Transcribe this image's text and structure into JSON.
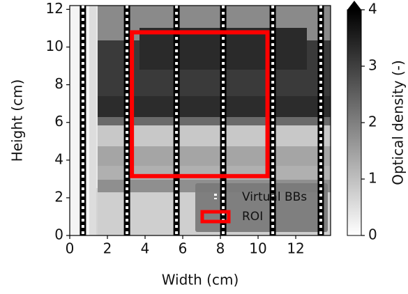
{
  "chart_data": {
    "type": "image",
    "xlabel": "Width (cm)",
    "ylabel": "Height (cm)",
    "xlim": [
      0,
      13.85
    ],
    "ylim": [
      0,
      12.2
    ],
    "xticks": [
      0,
      2,
      4,
      6,
      8,
      10,
      12
    ],
    "yticks": [
      0,
      2,
      4,
      6,
      8,
      10,
      12
    ],
    "colorbar": {
      "label": "Optical density (-)",
      "lim": [
        0,
        4
      ],
      "ticks": [
        0,
        1,
        2,
        3,
        4
      ]
    },
    "bbs": {
      "name": "Virtual BBs",
      "x": [
        0.7,
        3.04,
        5.67,
        8.15,
        10.78,
        13.33
      ]
    },
    "roi": {
      "name": "ROI",
      "color": "#ff0000",
      "x": [
        3.3,
        10.5
      ],
      "y": [
        3.15,
        10.78
      ]
    },
    "legend": "lower right"
  }
}
